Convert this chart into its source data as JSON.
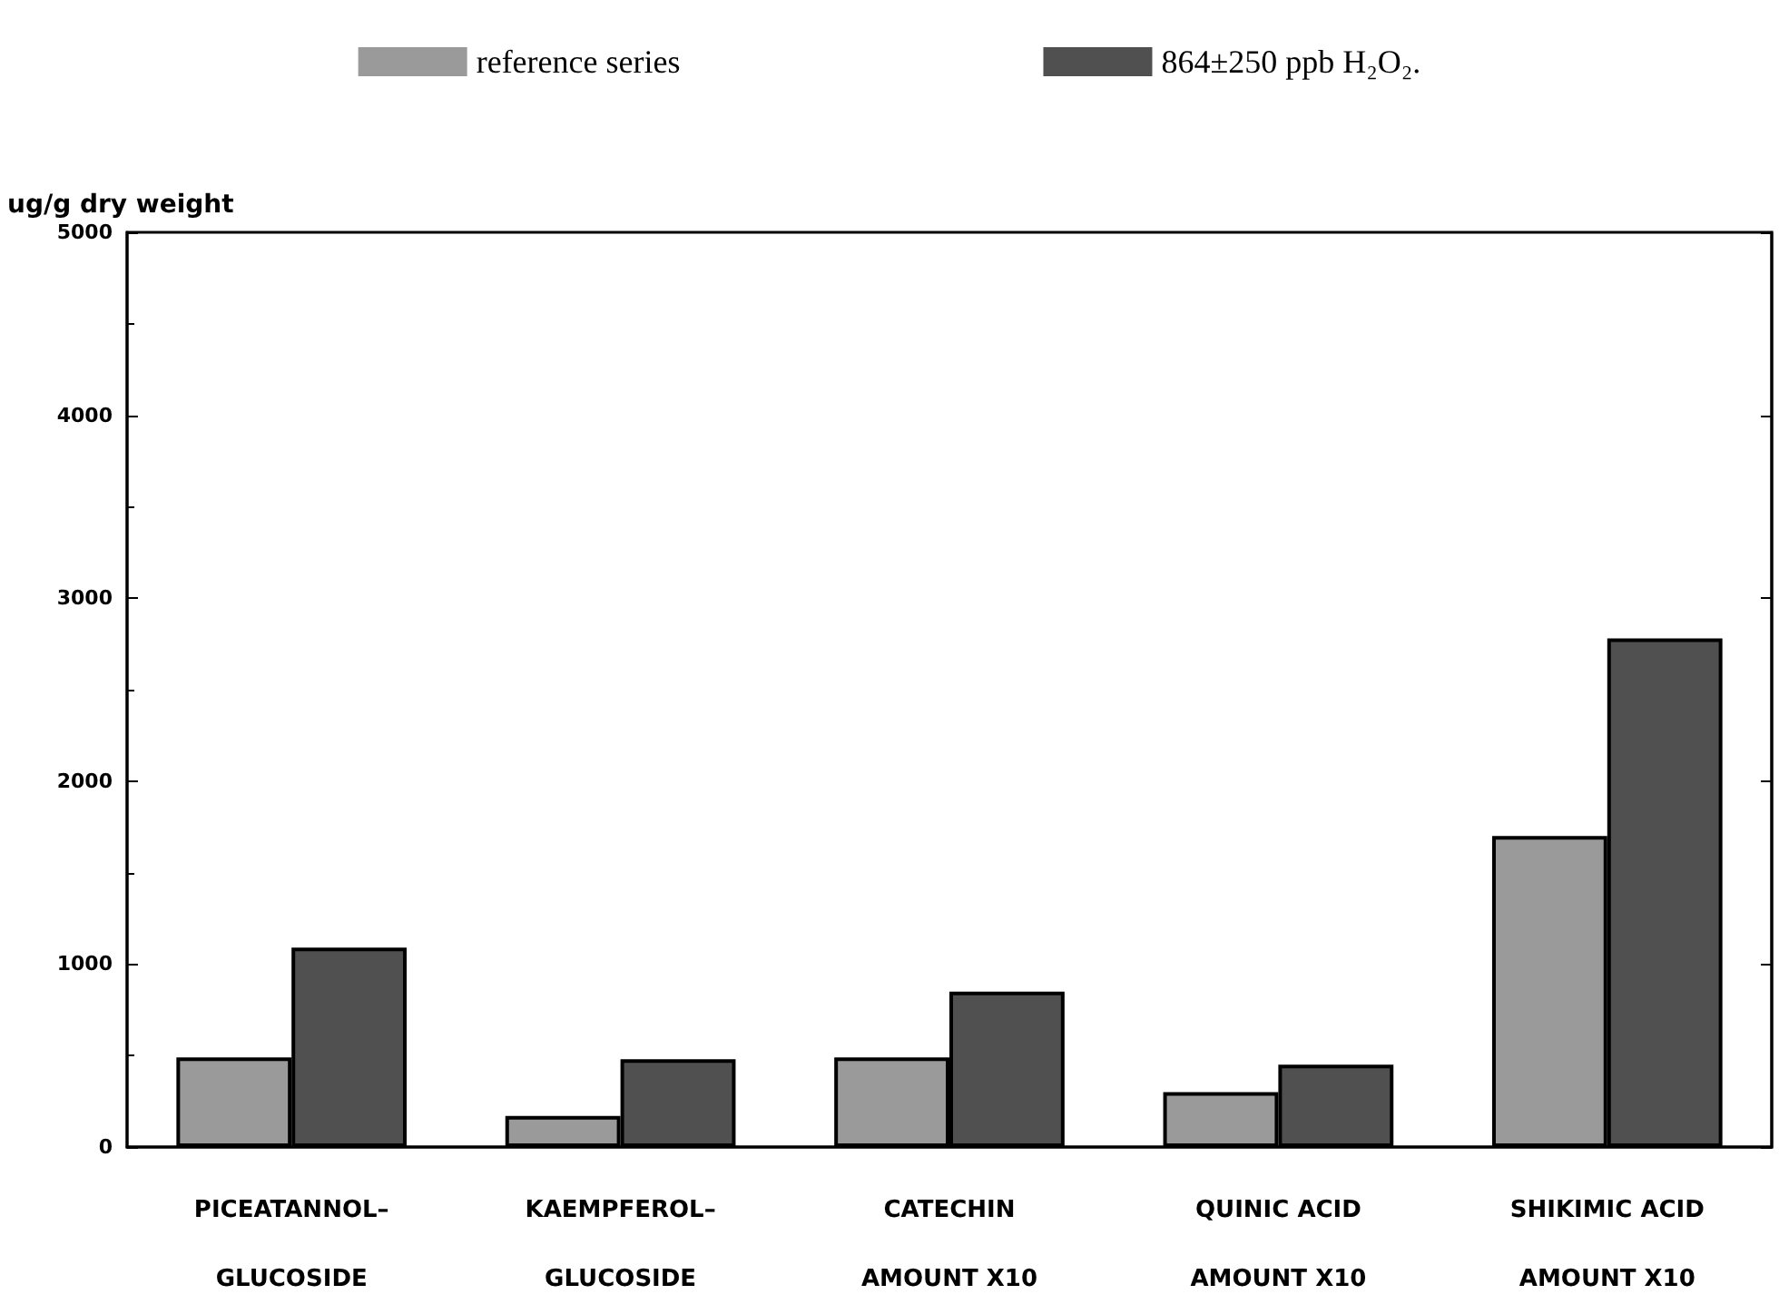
{
  "chart_data": {
    "type": "bar",
    "ylabel": "ug/g dry weight",
    "categories": [
      "PICEATANNOL–\nGLUCOSIDE",
      "KAEMPFEROL–\nGLUCOSIDE",
      "CATECHIN\nAMOUNT X10",
      "QUINIC ACID\nAMOUNT X10",
      "SHIKIMIC ACID\nAMOUNT X10"
    ],
    "series": [
      {
        "name": "reference series",
        "color": "#9a9a9a",
        "values": [
          490,
          170,
          490,
          300,
          1700
        ]
      },
      {
        "name": "864±250 ppb H₂O₂.",
        "color": "#505050",
        "values": [
          1090,
          480,
          850,
          450,
          2780
        ]
      }
    ],
    "ylim": [
      0,
      5000
    ],
    "yticks": [
      0,
      1000,
      2000,
      3000,
      4000,
      5000
    ],
    "grid": false,
    "legend": "top"
  }
}
